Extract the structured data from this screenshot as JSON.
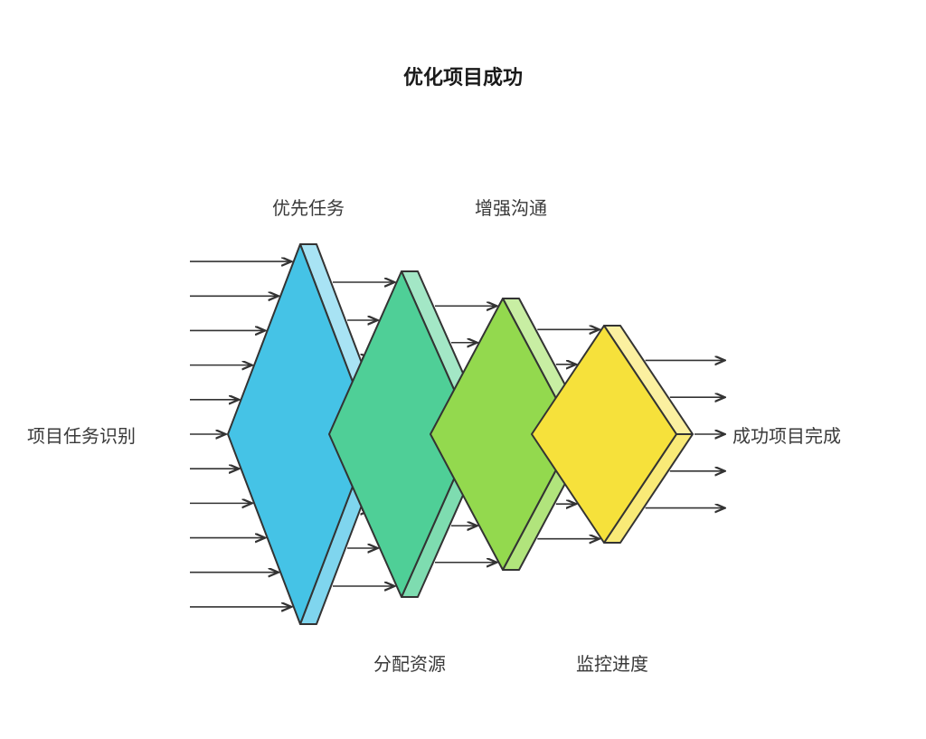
{
  "title": {
    "text": "优化项目成功",
    "fontsize": 22,
    "color": "#1a1a1a",
    "weight": 700
  },
  "labels": {
    "input": {
      "text": "项目任务识别",
      "fontsize": 20,
      "color": "#3a3a3a"
    },
    "output": {
      "text": "成功项目完成",
      "fontsize": 20,
      "color": "#3a3a3a"
    },
    "top1": {
      "text": "优先任务",
      "fontsize": 20,
      "color": "#3a3a3a"
    },
    "top2": {
      "text": "增强沟通",
      "fontsize": 20,
      "color": "#3a3a3a"
    },
    "bot1": {
      "text": "分配资源",
      "fontsize": 20,
      "color": "#3a3a3a"
    },
    "bot2": {
      "text": "监控进度",
      "fontsize": 20,
      "color": "#3a3a3a"
    }
  },
  "geometry": {
    "centerY": 480,
    "depth": 18,
    "diamond_halfwidth": 80,
    "spacing": 112,
    "firstX": 332,
    "arrow_stroke": "#333333",
    "arrow_width": 1.6,
    "outline_stroke": "#333333",
    "outline_width": 2
  },
  "diamonds": [
    {
      "id": "d1",
      "half_height": 210,
      "fill_front": "#45c3e6",
      "fill_side": "#7fd5ee",
      "fill_top": "#a8e3f4",
      "arrows_in_count": 11,
      "arrows_out_count": 9
    },
    {
      "id": "d2",
      "half_height": 180,
      "fill_front": "#4fcf97",
      "fill_side": "#7edcb0",
      "fill_top": "#a3e7c6",
      "arrows_in_count": 9,
      "arrows_out_count": 8
    },
    {
      "id": "d3",
      "half_height": 150,
      "fill_front": "#93d94e",
      "fill_side": "#b1e47c",
      "fill_top": "#c8eea3",
      "arrows_in_count": 8,
      "arrows_out_count": 7
    },
    {
      "id": "d4",
      "half_height": 120,
      "fill_front": "#f6e13b",
      "fill_side": "#f9ea77",
      "fill_top": "#fbf0a0",
      "arrows_in_count": 7,
      "arrows_out_count": 5
    }
  ],
  "input_arrows": {
    "startX": 210,
    "length": 80
  },
  "output_arrows": {
    "endX": 800,
    "length": 70
  },
  "background_color": "#ffffff"
}
